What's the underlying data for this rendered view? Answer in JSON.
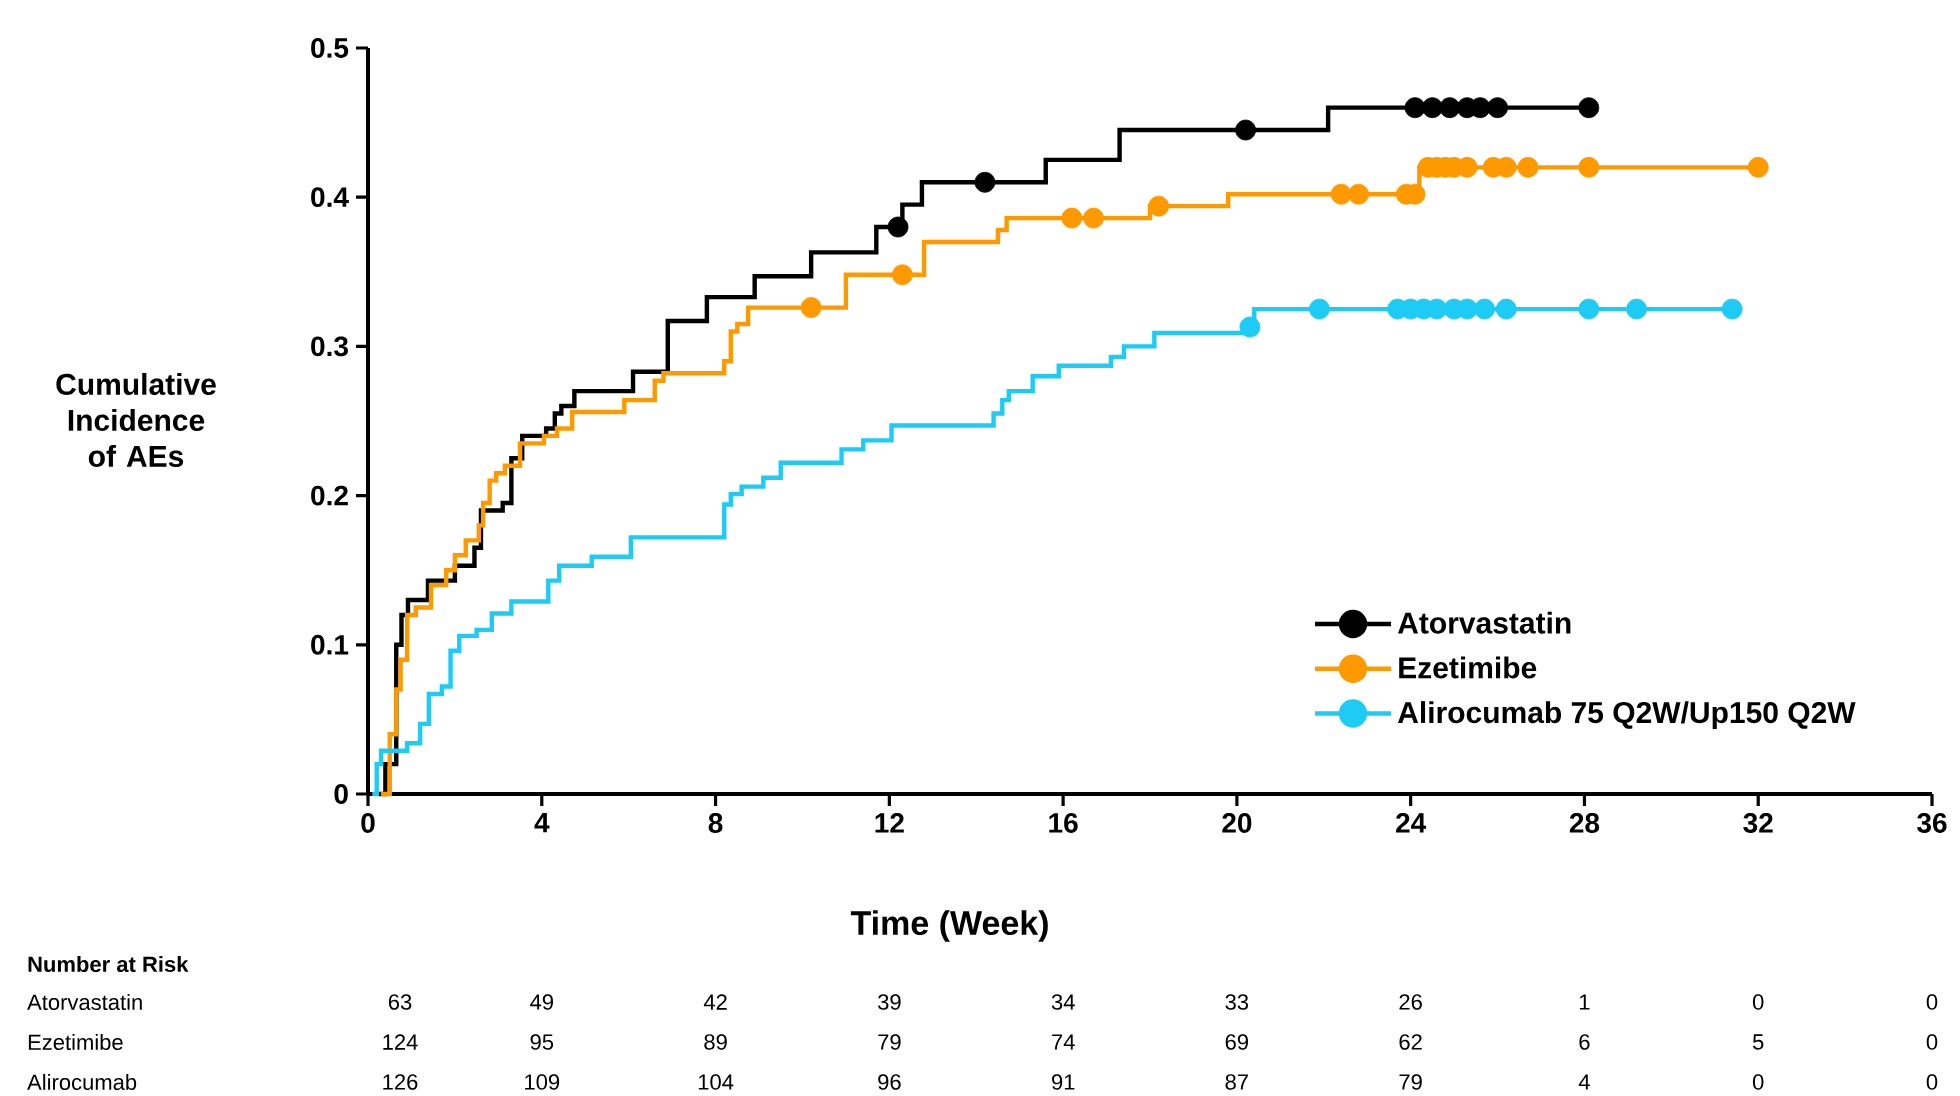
{
  "chart_data": {
    "type": "step",
    "xlabel": "Time (Week)",
    "ylabel": "Cumulative Incidence of AEs",
    "xlim": [
      0,
      36
    ],
    "xticks": [
      0,
      4,
      8,
      12,
      16,
      20,
      24,
      28,
      32,
      36
    ],
    "ylim": [
      0,
      0.5
    ],
    "yticks": [
      0,
      0.1,
      0.2,
      0.3,
      0.4,
      0.5
    ],
    "legend": "bottom right",
    "series": [
      {
        "name": "Atorvastatin",
        "color": "#000000",
        "x": [
          0.25,
          0.4,
          0.65,
          0.77,
          0.92,
          1.38,
          2.0,
          2.45,
          2.6,
          3.1,
          3.3,
          3.55,
          4.1,
          4.3,
          4.45,
          4.75,
          6.1,
          6.9,
          7.8,
          8.9,
          10.2,
          11.7,
          12.3,
          12.75,
          15.6,
          17.3,
          22.1,
          28.1
        ],
        "values": [
          0,
          0.02,
          0.1,
          0.12,
          0.13,
          0.143,
          0.153,
          0.165,
          0.19,
          0.195,
          0.225,
          0.24,
          0.245,
          0.255,
          0.26,
          0.27,
          0.283,
          0.317,
          0.333,
          0.347,
          0.363,
          0.38,
          0.395,
          0.41,
          0.425,
          0.445,
          0.46,
          0.46
        ]
      },
      {
        "name": "Ezetimibe",
        "color": "#ff9900",
        "x": [
          0.3,
          0.5,
          0.65,
          0.75,
          0.9,
          1.1,
          1.45,
          1.8,
          2.0,
          2.25,
          2.55,
          2.65,
          2.8,
          2.95,
          3.15,
          3.5,
          4.05,
          4.35,
          4.7,
          5.9,
          6.6,
          6.8,
          8.2,
          8.35,
          8.5,
          8.75,
          11.0,
          12.8,
          14.5,
          14.7,
          18.0,
          19.8,
          24.2,
          32.0
        ],
        "values": [
          0,
          0.04,
          0.07,
          0.09,
          0.12,
          0.125,
          0.14,
          0.15,
          0.16,
          0.17,
          0.18,
          0.195,
          0.21,
          0.215,
          0.22,
          0.235,
          0.24,
          0.245,
          0.256,
          0.264,
          0.277,
          0.282,
          0.29,
          0.31,
          0.315,
          0.326,
          0.348,
          0.37,
          0.378,
          0.386,
          0.394,
          0.402,
          0.42,
          0.42
        ]
      },
      {
        "name": "Alirocumab 75 Q2W/Up150 Q2W",
        "color": "#1ecbf5",
        "x": [
          0.1,
          0.2,
          0.3,
          0.9,
          1.2,
          1.4,
          1.7,
          1.9,
          2.1,
          2.5,
          2.85,
          3.3,
          4.15,
          4.4,
          5.15,
          6.05,
          8.2,
          8.35,
          8.6,
          9.1,
          9.5,
          10.9,
          11.4,
          12.05,
          14.4,
          14.6,
          14.75,
          15.3,
          15.9,
          17.1,
          17.4,
          18.1,
          20.4,
          31.4
        ],
        "values": [
          0,
          0.02,
          0.029,
          0.034,
          0.047,
          0.067,
          0.072,
          0.096,
          0.106,
          0.11,
          0.121,
          0.129,
          0.143,
          0.153,
          0.159,
          0.172,
          0.194,
          0.201,
          0.206,
          0.212,
          0.222,
          0.231,
          0.237,
          0.247,
          0.255,
          0.264,
          0.27,
          0.28,
          0.287,
          0.293,
          0.3,
          0.309,
          0.325,
          0.325
        ]
      },
      {
        "type": "scatter",
        "marker": "circle",
        "color": "#000000",
        "x": [
          12.2,
          14.2,
          20.2,
          24.1,
          24.5,
          24.9,
          25.3,
          25.6,
          26.0,
          28.1
        ],
        "values": [
          0.38,
          0.41,
          0.445,
          0.46,
          0.46,
          0.46,
          0.46,
          0.46,
          0.46,
          0.46
        ]
      },
      {
        "type": "scatter",
        "marker": "circle",
        "color": "#ff9900",
        "x": [
          10.2,
          12.3,
          16.2,
          16.7,
          18.2,
          22.4,
          22.8,
          23.9,
          24.1,
          24.4,
          24.6,
          24.8,
          25.0,
          25.3,
          25.9,
          26.2,
          26.7,
          28.1,
          32.0
        ],
        "values": [
          0.326,
          0.348,
          0.386,
          0.386,
          0.394,
          0.402,
          0.402,
          0.402,
          0.402,
          0.42,
          0.42,
          0.42,
          0.42,
          0.42,
          0.42,
          0.42,
          0.42,
          0.42,
          0.42
        ]
      },
      {
        "type": "scatter",
        "marker": "circle",
        "color": "#1ecbf5",
        "x": [
          20.3,
          21.9,
          23.7,
          24.0,
          24.3,
          24.6,
          25.0,
          25.3,
          25.7,
          26.2,
          28.1,
          29.2,
          31.4
        ],
        "values": [
          0.313,
          0.325,
          0.325,
          0.325,
          0.325,
          0.325,
          0.325,
          0.325,
          0.325,
          0.325,
          0.325,
          0.325,
          0.325
        ]
      }
    ],
    "annotations": [
      "Number at Risk",
      "Atorvastatin",
      "63",
      "49",
      "42",
      "39",
      "34",
      "33",
      "26",
      "1",
      "0",
      "0",
      "Ezetimibe",
      "124",
      "95",
      "89",
      "79",
      "74",
      "69",
      "62",
      "6",
      "5",
      "0",
      "Alirocumab",
      "126",
      "109",
      "104",
      "96",
      "91",
      "87",
      "79",
      "4",
      "0",
      "0"
    ]
  }
}
